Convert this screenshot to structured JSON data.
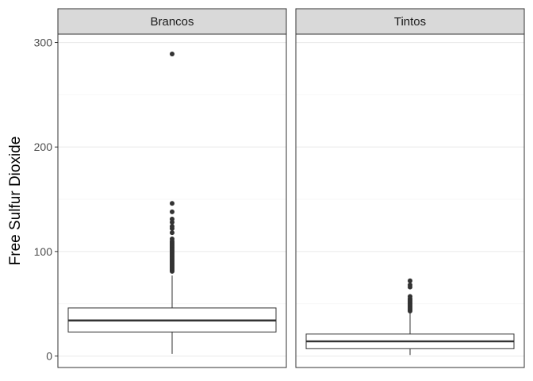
{
  "chart_data": {
    "type": "boxplot",
    "ylabel": "Free Sulfur Dioxide",
    "xlabel": "",
    "ylim": [
      -11,
      308
    ],
    "yticks": [
      0,
      100,
      200,
      300
    ],
    "grid": true,
    "facets": [
      {
        "label": "Brancos",
        "min": 2,
        "q1": 23,
        "median": 34,
        "q3": 46,
        "whisker_high": 77,
        "outliers": [
          81,
          82,
          83,
          84,
          85,
          86,
          87,
          88,
          89,
          90,
          91,
          92,
          93,
          94,
          95,
          96,
          97,
          98,
          99,
          100,
          101,
          102,
          103,
          104,
          105,
          106,
          107,
          108,
          109,
          110,
          112,
          118,
          122,
          124,
          128,
          131,
          138,
          146,
          289
        ]
      },
      {
        "label": "Tintos",
        "min": 1,
        "q1": 7,
        "median": 14,
        "q3": 21,
        "whisker_high": 42,
        "outliers": [
          43,
          44,
          45,
          46,
          47,
          48,
          49,
          50,
          51,
          52,
          53,
          54,
          55,
          57,
          66,
          68,
          72
        ]
      }
    ]
  },
  "colors": {
    "panel_border": "#333333",
    "strip_fill": "#d9d9d9",
    "grid_major": "#ebebeb",
    "grid_minor": "#f5f5f5",
    "box_line": "#333333",
    "outlier": "#333333"
  }
}
